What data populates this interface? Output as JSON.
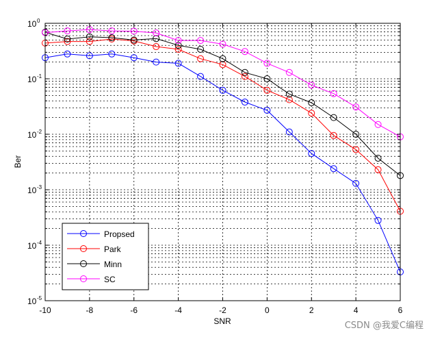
{
  "watermark": "CSDN @我爱C编程",
  "chart_data": {
    "type": "line",
    "title": "",
    "xlabel": "SNR",
    "ylabel": "Ber",
    "x": [
      -10,
      -9,
      -8,
      -7,
      -6,
      -5,
      -4,
      -3,
      -2,
      -1,
      0,
      1,
      2,
      3,
      4,
      5,
      6
    ],
    "xlim": [
      -10,
      6
    ],
    "xticks": [
      -10,
      -8,
      -6,
      -4,
      -2,
      0,
      2,
      4,
      6
    ],
    "xtick_labels": [
      "-10",
      "-8",
      "-6",
      "-4",
      "-2",
      "0",
      "2",
      "4",
      "6"
    ],
    "yscale": "log",
    "ylim": [
      1e-05,
      1
    ],
    "yticks": [
      {
        "base": "10",
        "exp": "0"
      },
      {
        "base": "10",
        "exp": "-1"
      },
      {
        "base": "10",
        "exp": "-2"
      },
      {
        "base": "10",
        "exp": "-3"
      },
      {
        "base": "10",
        "exp": "-4"
      },
      {
        "base": "10",
        "exp": "-5"
      }
    ],
    "grid": true,
    "legend_position": "bottom-left",
    "marker": "circle",
    "series": [
      {
        "name": "Propsed",
        "color": "#0000ff",
        "values": [
          0.24,
          0.28,
          0.26,
          0.28,
          0.24,
          0.2,
          0.19,
          0.11,
          0.062,
          0.038,
          0.027,
          0.011,
          0.0045,
          0.0024,
          0.0013,
          0.00028,
          3.3e-05
        ]
      },
      {
        "name": "Park",
        "color": "#ff0000",
        "values": [
          0.44,
          0.47,
          0.47,
          0.52,
          0.48,
          0.38,
          0.34,
          0.23,
          0.18,
          0.11,
          0.062,
          0.042,
          0.024,
          0.0095,
          0.0053,
          0.0023,
          0.00041
        ]
      },
      {
        "name": "Minn",
        "color": "#000000",
        "values": [
          0.69,
          0.52,
          0.57,
          0.55,
          0.5,
          0.53,
          0.4,
          0.34,
          0.23,
          0.13,
          0.1,
          0.053,
          0.037,
          0.02,
          0.01,
          0.0037,
          0.0018
        ]
      },
      {
        "name": "SC",
        "color": "#ff00ff",
        "values": [
          0.68,
          0.73,
          0.77,
          0.73,
          0.72,
          0.67,
          0.49,
          0.49,
          0.42,
          0.31,
          0.19,
          0.13,
          0.077,
          0.054,
          0.031,
          0.015,
          0.009
        ]
      }
    ]
  }
}
